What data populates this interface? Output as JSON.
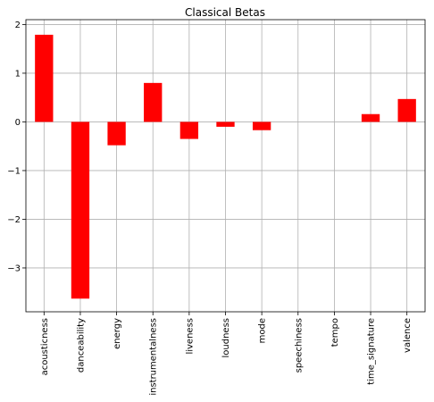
{
  "chart_data": {
    "type": "bar",
    "title": "Classical Betas",
    "xlabel": "",
    "ylabel": "",
    "categories": [
      "acousticness",
      "danceability",
      "energy",
      "instrumentalness",
      "liveness",
      "loudness",
      "mode",
      "speechiness",
      "tempo",
      "time_signature",
      "valence"
    ],
    "values": [
      1.79,
      -3.63,
      -0.48,
      0.8,
      -0.35,
      -0.1,
      -0.17,
      0,
      0,
      0.16,
      0.47
    ],
    "ylim": [
      -3.9,
      2.1
    ],
    "yticks": [
      2,
      1,
      0,
      -1,
      -2,
      -3
    ],
    "ytick_labels": [
      "2",
      "1",
      "0",
      "−1",
      "−2",
      "−3"
    ],
    "bar_color": "#ff0000",
    "grid": true
  }
}
